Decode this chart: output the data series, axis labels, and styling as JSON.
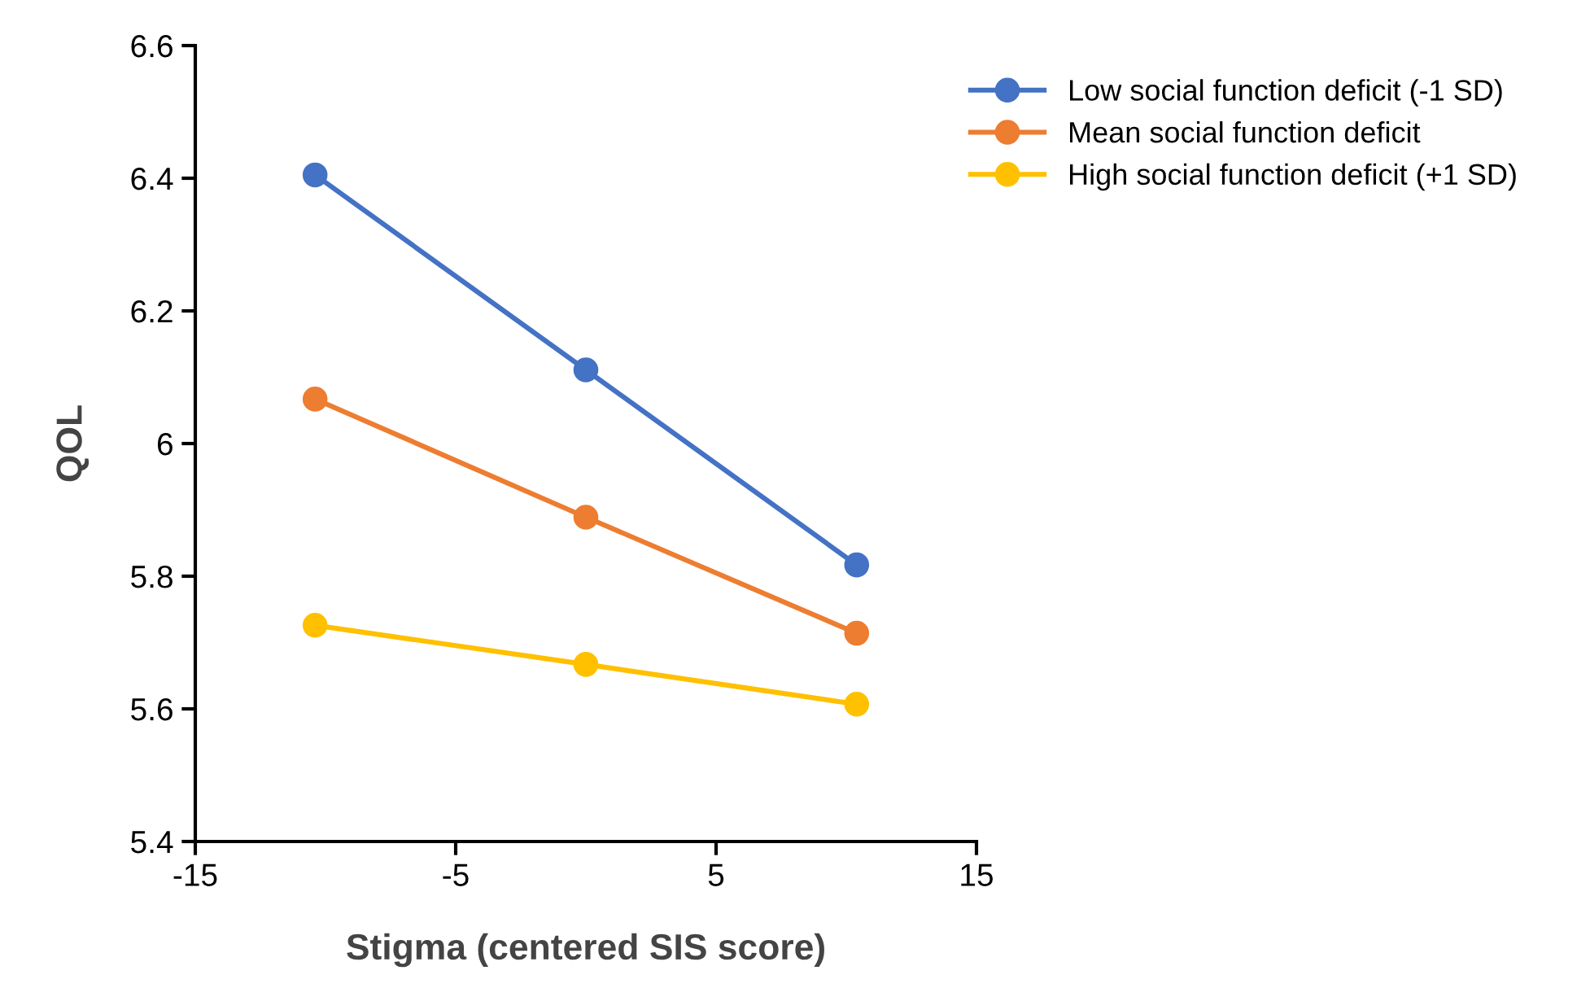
{
  "chart_data": {
    "type": "line",
    "xlabel": "Stigma (centered SIS score)",
    "ylabel": "QOL",
    "x": [
      -10.4,
      0,
      10.4
    ],
    "series": [
      {
        "name": "Low social function deficit (-1 SD)",
        "color": "#4472c4",
        "values": [
          6.405,
          6.111,
          5.817
        ]
      },
      {
        "name": "Mean social function deficit",
        "color": "#ed7d31",
        "values": [
          6.067,
          5.889,
          5.714
        ]
      },
      {
        "name": "High social function deficit (+1 SD)",
        "color": "#ffc000",
        "values": [
          5.726,
          5.667,
          5.607
        ]
      }
    ],
    "xlim": [
      -15,
      15
    ],
    "xticks": [
      -15,
      -5,
      5,
      15
    ],
    "ylim": [
      5.4,
      6.6
    ],
    "yticks": [
      5.4,
      5.6,
      5.8,
      6.2,
      6.4,
      6.6,
      {
        "value": 6.0,
        "label": "6"
      }
    ],
    "grid": false,
    "legend": "top right",
    "marker": "circle",
    "line_style": "solid"
  }
}
